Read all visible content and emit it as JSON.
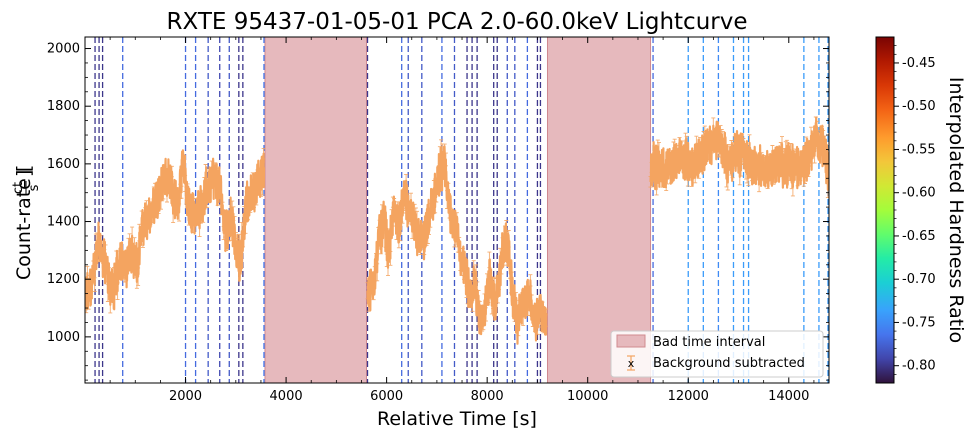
{
  "chart_data": {
    "type": "line",
    "title": "RXTE 95437-01-05-01 PCA 2.0-60.0keV Lightcurve",
    "xlabel": "Relative Time [s]",
    "ylabel_main": "Count-rate [",
    "ylabel_num": "ct",
    "ylabel_den": "s",
    "ylabel_close": "]",
    "xlim": [
      0,
      14800
    ],
    "ylim": [
      840,
      2040
    ],
    "xticks": [
      2000,
      4000,
      6000,
      8000,
      10000,
      12000,
      14000
    ],
    "xtick_labels": [
      "2000",
      "4000",
      "6000",
      "8000",
      "10000",
      "12000",
      "14000"
    ],
    "yticks": [
      1000,
      1200,
      1400,
      1600,
      1800,
      2000
    ],
    "ytick_labels": [
      "1000",
      "1200",
      "1400",
      "1600",
      "1800",
      "2000"
    ],
    "bad_time_intervals": [
      [
        3580,
        5600
      ],
      [
        9200,
        11250
      ]
    ],
    "dashed_lines": [
      {
        "x": 200,
        "h": -0.8
      },
      {
        "x": 280,
        "h": -0.8
      },
      {
        "x": 350,
        "h": -0.8
      },
      {
        "x": 750,
        "h": -0.77
      },
      {
        "x": 2000,
        "h": -0.77
      },
      {
        "x": 2200,
        "h": -0.77
      },
      {
        "x": 2450,
        "h": -0.78
      },
      {
        "x": 2680,
        "h": -0.79
      },
      {
        "x": 2870,
        "h": -0.78
      },
      {
        "x": 3060,
        "h": -0.8
      },
      {
        "x": 3140,
        "h": -0.8
      },
      {
        "x": 3560,
        "h": -0.76
      },
      {
        "x": 5620,
        "h": -0.8
      },
      {
        "x": 6300,
        "h": -0.77
      },
      {
        "x": 6430,
        "h": -0.78
      },
      {
        "x": 6700,
        "h": -0.78
      },
      {
        "x": 7100,
        "h": -0.77
      },
      {
        "x": 7350,
        "h": -0.78
      },
      {
        "x": 7600,
        "h": -0.8
      },
      {
        "x": 7700,
        "h": -0.8
      },
      {
        "x": 7800,
        "h": -0.8
      },
      {
        "x": 8130,
        "h": -0.8
      },
      {
        "x": 8200,
        "h": -0.8
      },
      {
        "x": 8400,
        "h": -0.78
      },
      {
        "x": 8550,
        "h": -0.78
      },
      {
        "x": 8800,
        "h": -0.77
      },
      {
        "x": 9000,
        "h": -0.8
      },
      {
        "x": 9060,
        "h": -0.8
      },
      {
        "x": 11300,
        "h": -0.77
      },
      {
        "x": 12000,
        "h": -0.74
      },
      {
        "x": 12300,
        "h": -0.74
      },
      {
        "x": 12600,
        "h": -0.75
      },
      {
        "x": 12900,
        "h": -0.74
      },
      {
        "x": 13100,
        "h": -0.74
      },
      {
        "x": 13200,
        "h": -0.74
      },
      {
        "x": 14300,
        "h": -0.74
      },
      {
        "x": 14600,
        "h": -0.74
      },
      {
        "x": 14780,
        "h": -0.74
      }
    ],
    "series": [
      {
        "name": "Background subtracted",
        "color": "#f4a460",
        "segments": [
          {
            "t0": 0,
            "t1": 3560,
            "knots": [
              [
                0,
                1130
              ],
              [
                150,
                1200
              ],
              [
                280,
                1340
              ],
              [
                400,
                1250
              ],
              [
                550,
                1150
              ],
              [
                700,
                1280
              ],
              [
                800,
                1220
              ],
              [
                900,
                1300
              ],
              [
                1050,
                1240
              ],
              [
                1150,
                1380
              ],
              [
                1300,
                1430
              ],
              [
                1450,
                1500
              ],
              [
                1600,
                1560
              ],
              [
                1750,
                1500
              ],
              [
                1850,
                1450
              ],
              [
                1950,
                1620
              ],
              [
                2050,
                1450
              ],
              [
                2200,
                1420
              ],
              [
                2350,
                1480
              ],
              [
                2550,
                1560
              ],
              [
                2700,
                1500
              ],
              [
                2800,
                1350
              ],
              [
                2900,
                1420
              ],
              [
                3000,
                1300
              ],
              [
                3100,
                1250
              ],
              [
                3200,
                1460
              ],
              [
                3350,
                1500
              ],
              [
                3450,
                1540
              ],
              [
                3560,
                1580
              ]
            ]
          },
          {
            "t0": 5620,
            "t1": 9180,
            "knots": [
              [
                5620,
                1150
              ],
              [
                5750,
                1200
              ],
              [
                5850,
                1350
              ],
              [
                5950,
                1400
              ],
              [
                6050,
                1300
              ],
              [
                6150,
                1450
              ],
              [
                6250,
                1380
              ],
              [
                6350,
                1500
              ],
              [
                6450,
                1430
              ],
              [
                6600,
                1350
              ],
              [
                6750,
                1330
              ],
              [
                6900,
                1450
              ],
              [
                7050,
                1570
              ],
              [
                7150,
                1600
              ],
              [
                7250,
                1450
              ],
              [
                7350,
                1400
              ],
              [
                7450,
                1300
              ],
              [
                7550,
                1240
              ],
              [
                7650,
                1150
              ],
              [
                7750,
                1200
              ],
              [
                7850,
                1050
              ],
              [
                7950,
                1100
              ],
              [
                8050,
                1200
              ],
              [
                8150,
                1100
              ],
              [
                8300,
                1280
              ],
              [
                8400,
                1330
              ],
              [
                8500,
                1150
              ],
              [
                8600,
                1050
              ],
              [
                8700,
                1100
              ],
              [
                8850,
                1150
              ],
              [
                8950,
                1050
              ],
              [
                9050,
                1100
              ],
              [
                9180,
                1050
              ]
            ]
          },
          {
            "t0": 11250,
            "t1": 14800,
            "knots": [
              [
                11250,
                1600
              ],
              [
                11500,
                1580
              ],
              [
                11800,
                1620
              ],
              [
                12100,
                1600
              ],
              [
                12400,
                1660
              ],
              [
                12600,
                1690
              ],
              [
                12800,
                1600
              ],
              [
                13000,
                1640
              ],
              [
                13300,
                1590
              ],
              [
                13600,
                1580
              ],
              [
                13900,
                1600
              ],
              [
                14200,
                1590
              ],
              [
                14400,
                1620
              ],
              [
                14550,
                1700
              ],
              [
                14700,
                1640
              ],
              [
                14800,
                1560
              ]
            ]
          }
        ]
      }
    ],
    "legend": {
      "placement": "lower-right",
      "entries": [
        "Bad time interval",
        "Background subtracted"
      ]
    },
    "colorbar": {
      "label": "Interpolated Hardness Ratio",
      "min": -0.82,
      "max": -0.42,
      "ticks": [
        -0.45,
        -0.5,
        -0.55,
        -0.6,
        -0.65,
        -0.7,
        -0.75,
        -0.8
      ],
      "tick_labels": [
        "-0.45",
        "-0.50",
        "-0.55",
        "-0.60",
        "-0.65",
        "-0.70",
        "-0.75",
        "-0.80"
      ]
    },
    "colors": {
      "bad_interval": "#e6b9bd",
      "bad_interval_edge": "#d08a90",
      "series": "#f4a460"
    }
  }
}
